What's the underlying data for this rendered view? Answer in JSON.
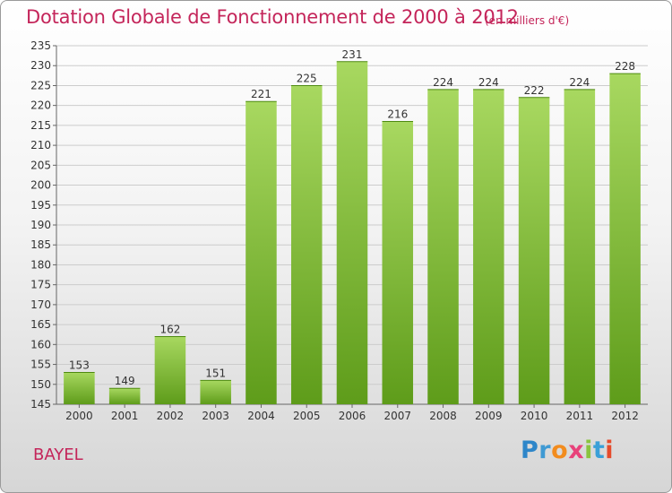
{
  "header": {
    "title": "Dotation Globale de Fonctionnement de 2000 à 2012",
    "unit_note": "(en milliers d'€)"
  },
  "commune": "BAYEL",
  "logo": {
    "text": "Proxiti",
    "letters": [
      "P",
      "r",
      "o",
      "x",
      "i",
      "t",
      "i"
    ]
  },
  "colors": {
    "bar_top": "#a8d860",
    "bar_bottom": "#5e9c1a",
    "title": "#c4255a",
    "grid": "#cccccc"
  },
  "chart_data": {
    "type": "bar",
    "categories": [
      "2000",
      "2001",
      "2002",
      "2003",
      "2004",
      "2005",
      "2006",
      "2007",
      "2008",
      "2009",
      "2010",
      "2011",
      "2012"
    ],
    "values": [
      153,
      149,
      162,
      151,
      221,
      225,
      231,
      216,
      224,
      224,
      222,
      224,
      228
    ],
    "title": "Dotation Globale de Fonctionnement de 2000 à 2012",
    "subtitle": "(en milliers d'€)",
    "xlabel": "",
    "ylabel": "",
    "ylim": [
      145,
      235
    ],
    "yticks": [
      145,
      150,
      155,
      160,
      165,
      170,
      175,
      180,
      185,
      190,
      195,
      200,
      205,
      210,
      215,
      220,
      225,
      230,
      235
    ],
    "grid": true,
    "data_labels": true
  }
}
